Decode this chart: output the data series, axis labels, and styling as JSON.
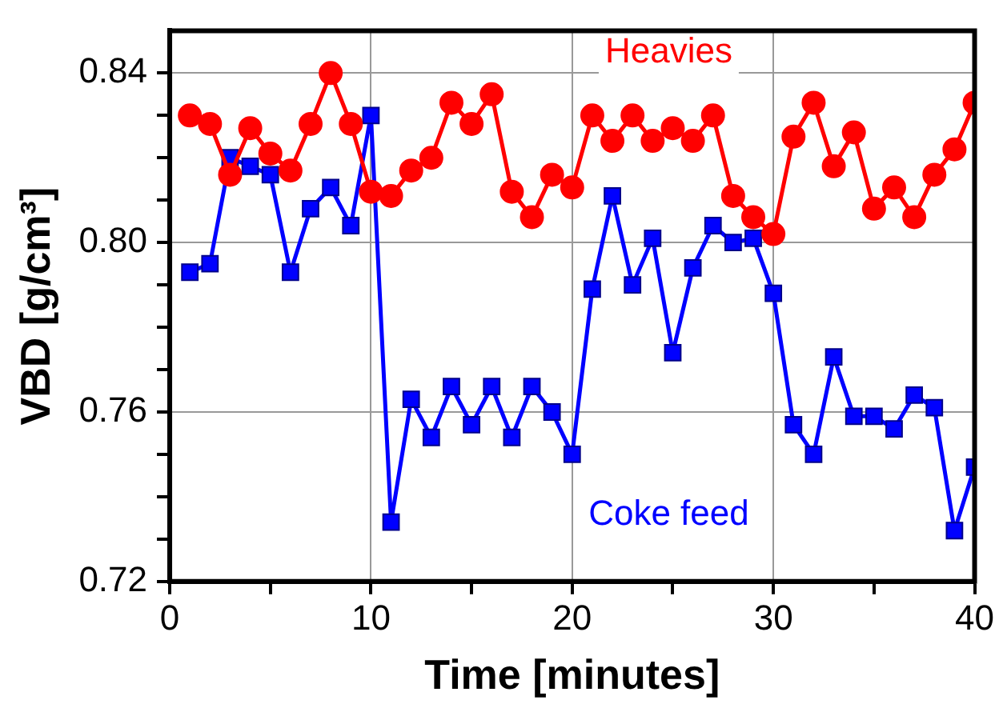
{
  "chart_data": {
    "type": "line",
    "xlabel": "Time [minutes]",
    "ylabel": "VBD [g/cm³]",
    "x": [
      1,
      2,
      3,
      4,
      5,
      6,
      7,
      8,
      9,
      10,
      11,
      12,
      13,
      14,
      15,
      16,
      17,
      18,
      19,
      20,
      21,
      22,
      23,
      24,
      25,
      26,
      27,
      28,
      29,
      30,
      31,
      32,
      33,
      34,
      35,
      36,
      37,
      38,
      39,
      40
    ],
    "series": [
      {
        "name": "Heavies",
        "color": "#ff0000",
        "marker": "circle",
        "values": [
          0.83,
          0.828,
          0.816,
          0.827,
          0.821,
          0.817,
          0.828,
          0.84,
          0.828,
          0.812,
          0.811,
          0.817,
          0.82,
          0.833,
          0.828,
          0.835,
          0.812,
          0.806,
          0.816,
          0.813,
          0.83,
          0.824,
          0.83,
          0.824,
          0.827,
          0.824,
          0.83,
          0.811,
          0.806,
          0.802,
          0.825,
          0.833,
          0.818,
          0.826,
          0.808,
          0.813,
          0.806,
          0.816,
          0.822,
          0.833
        ]
      },
      {
        "name": "Coke feed",
        "color": "#0000ff",
        "marker": "square",
        "values": [
          0.793,
          0.795,
          0.82,
          0.818,
          0.816,
          0.793,
          0.808,
          0.813,
          0.804,
          0.83,
          0.734,
          0.763,
          0.754,
          0.766,
          0.757,
          0.766,
          0.754,
          0.766,
          0.76,
          0.75,
          0.789,
          0.811,
          0.79,
          0.801,
          0.774,
          0.794,
          0.804,
          0.8,
          0.801,
          0.788,
          0.757,
          0.75,
          0.773,
          0.759,
          0.759,
          0.756,
          0.764,
          0.761,
          0.732,
          0.747
        ]
      }
    ],
    "xlim": [
      0,
      40
    ],
    "xticks": [
      0,
      {
        "value": 5,
        "label": null
      },
      10,
      {
        "value": 15,
        "label": null
      },
      20,
      {
        "value": 25,
        "label": null
      },
      30,
      {
        "value": 35,
        "label": null
      },
      40
    ],
    "ylim": [
      0.72,
      0.85
    ],
    "yticks": [
      {
        "value": 0.72,
        "label": "0.72"
      },
      {
        "value": 0.73,
        "label": null
      },
      {
        "value": 0.74,
        "label": null
      },
      {
        "value": 0.75,
        "label": null
      },
      {
        "value": 0.76,
        "label": "0.76"
      },
      {
        "value": 0.77,
        "label": null
      },
      {
        "value": 0.78,
        "label": null
      },
      {
        "value": 0.79,
        "label": null
      },
      {
        "value": 0.8,
        "label": "0.80"
      },
      {
        "value": 0.81,
        "label": null
      },
      {
        "value": 0.82,
        "label": null
      },
      {
        "value": 0.83,
        "label": null
      },
      {
        "value": 0.84,
        "label": "0.84"
      }
    ],
    "grid": true,
    "legend": false,
    "line_style": "solid"
  }
}
